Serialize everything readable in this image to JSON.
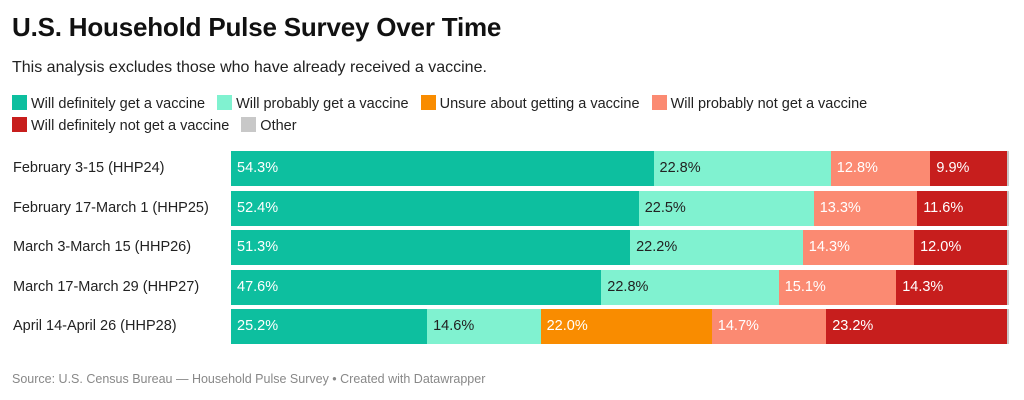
{
  "title": "U.S. Household Pulse Survey Over Time",
  "subtitle": "This analysis excludes those who have already received a vaccine.",
  "source": "Source: U.S. Census Bureau — Household Pulse Survey • Created with Datawrapper",
  "legend": [
    {
      "label": "Will definitely get a vaccine",
      "color": "#0dbf9f"
    },
    {
      "label": "Will probably get a vaccine",
      "color": "#80f2d0"
    },
    {
      "label": "Unsure about getting a vaccine",
      "color": "#f98c00"
    },
    {
      "label": "Will probably not get a vaccine",
      "color": "#fb8a72"
    },
    {
      "label": "Will definitely not get a vaccine",
      "color": "#c71e1d"
    },
    {
      "label": "Other",
      "color": "#c8c8c8"
    }
  ],
  "chart_data": {
    "type": "bar",
    "orientation": "horizontal",
    "stacked": true,
    "categories": [
      "February 3-15 (HHP24)",
      "February 17-March 1 (HHP25)",
      "March 3-March 15 (HHP26)",
      "March 17-March 29 (HHP27)",
      "April 14-April 26 (HHP28)"
    ],
    "series": [
      {
        "name": "Will definitely get a vaccine",
        "color": "#0dbf9f",
        "label_color": "#ffffff",
        "values": [
          54.3,
          52.4,
          51.3,
          47.6,
          25.2
        ]
      },
      {
        "name": "Will probably get a vaccine",
        "color": "#80f2d0",
        "label_color": "#222222",
        "values": [
          22.8,
          22.5,
          22.2,
          22.8,
          14.6
        ]
      },
      {
        "name": "Unsure about getting a vaccine",
        "color": "#f98c00",
        "label_color": "#ffffff",
        "values": [
          0,
          0,
          0,
          0,
          22.0
        ]
      },
      {
        "name": "Will probably not get a vaccine",
        "color": "#fb8a72",
        "label_color": "#ffffff",
        "values": [
          12.8,
          13.3,
          14.3,
          15.1,
          14.7
        ]
      },
      {
        "name": "Will definitely not get a vaccine",
        "color": "#c71e1d",
        "label_color": "#ffffff",
        "values": [
          9.9,
          11.6,
          12.0,
          14.3,
          23.2
        ]
      },
      {
        "name": "Other",
        "color": "#c8c8c8",
        "label_color": "#222222",
        "values": [
          0.2,
          0.2,
          0.2,
          0.2,
          0.3
        ]
      }
    ],
    "value_suffix": "%",
    "xlim": [
      0,
      100
    ]
  }
}
